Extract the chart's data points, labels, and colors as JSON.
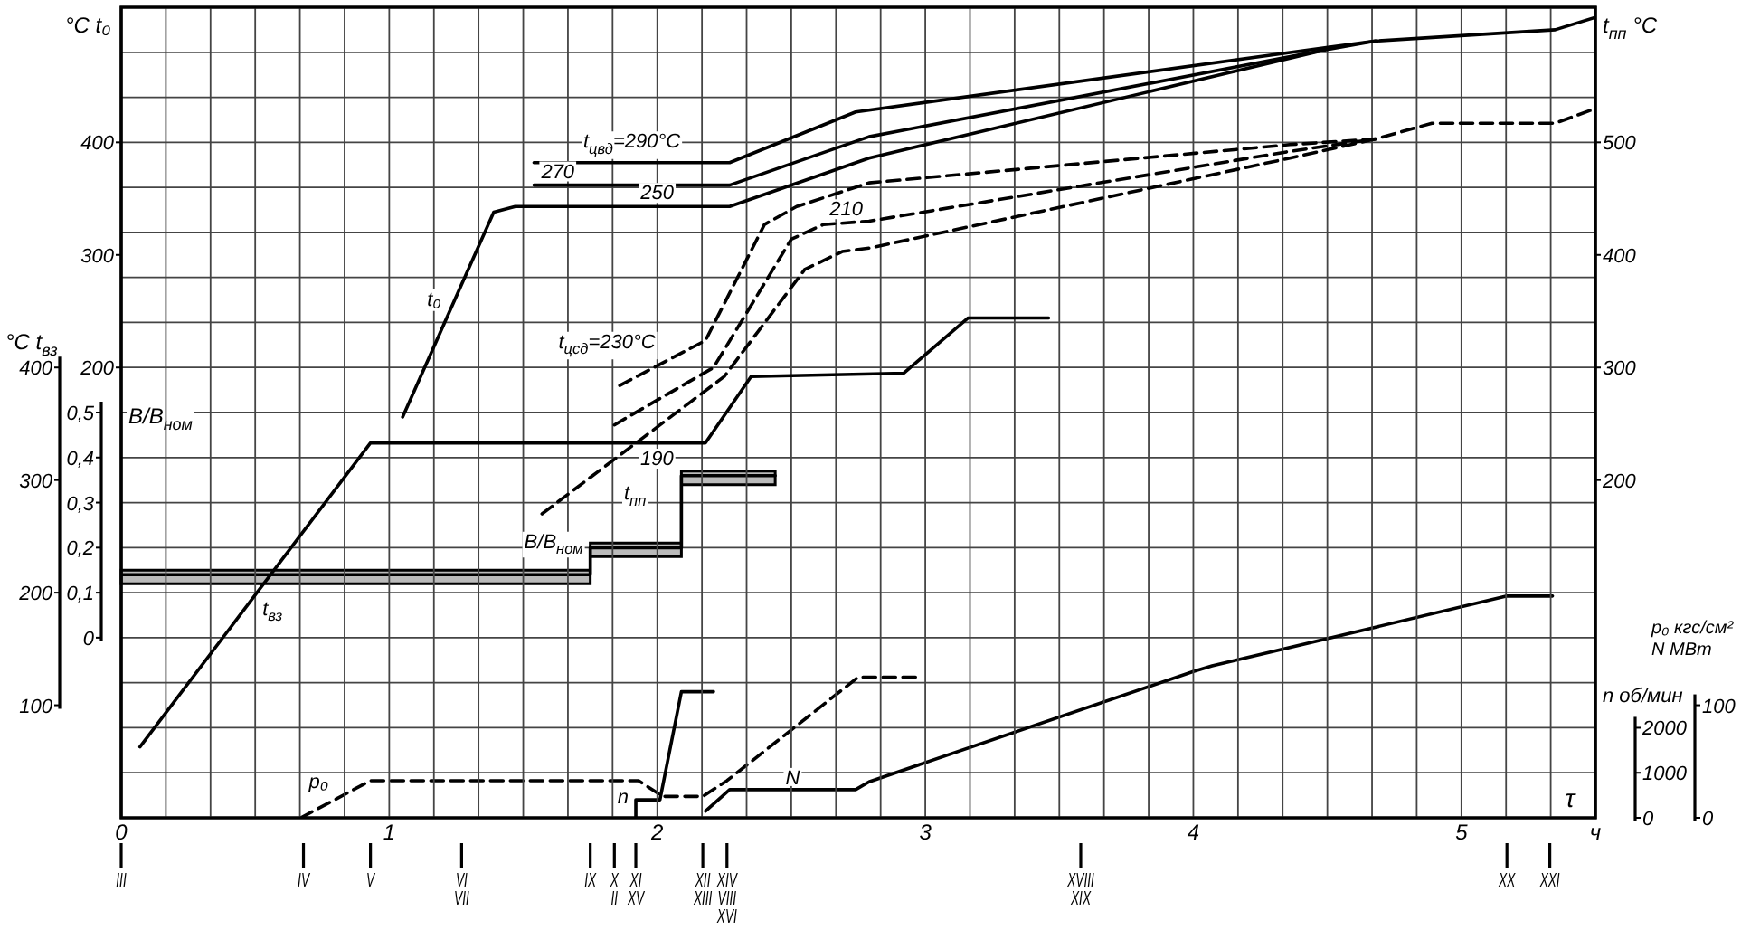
{
  "chart_data": [
    {
      "type": "line",
      "xlabel": "τ",
      "ylabel": "°C t₀",
      "y2label": "t$_{пп}$ °C",
      "y3label": "°C t$_{вз}$",
      "xlim": [
        0,
        5.5
      ],
      "xticks": [
        0,
        {
          "value": 0.1667,
          "label": null
        },
        {
          "value": 0.3333,
          "label": null
        },
        {
          "value": 0.5,
          "label": null
        },
        {
          "value": 0.6667,
          "label": null
        },
        {
          "value": 0.8333,
          "label": null
        },
        1,
        {
          "value": 1.1667,
          "label": null
        },
        {
          "value": 1.3333,
          "label": null
        },
        {
          "value": 1.5,
          "label": null
        },
        {
          "value": 1.6667,
          "label": null
        },
        {
          "value": 1.8333,
          "label": null
        },
        2,
        {
          "value": 2.1667,
          "label": null
        },
        {
          "value": 2.3333,
          "label": null
        },
        {
          "value": 2.5,
          "label": null
        },
        {
          "value": 2.6667,
          "label": null
        },
        {
          "value": 2.8333,
          "label": null
        },
        3,
        {
          "value": 3.1667,
          "label": null
        },
        {
          "value": 3.3333,
          "label": null
        },
        {
          "value": 3.5,
          "label": null
        },
        {
          "value": 3.6667,
          "label": null
        },
        {
          "value": 3.8333,
          "label": null
        },
        4,
        {
          "value": 4.1667,
          "label": null
        },
        {
          "value": 4.3333,
          "label": null
        },
        {
          "value": 4.5,
          "label": null
        },
        {
          "value": 4.6667,
          "label": null
        },
        {
          "value": 4.8333,
          "label": null
        },
        5,
        {
          "value": 5.1667,
          "label": null
        },
        {
          "value": 5.3333,
          "label": null
        },
        {
          "value": 5.5,
          "label": "ч"
        }
      ],
      "ylim": [
        -200,
        520
      ],
      "yticks": [
        200,
        300,
        400
      ],
      "y2lim": [
        -100,
        620
      ],
      "y2ticks": [
        200,
        300,
        400,
        500
      ],
      "y3lim": [
        0,
        720
      ],
      "y3ticks": [
        100,
        200,
        300,
        400
      ],
      "grid": "x",
      "marker": "none",
      "series": [
        {
          "name": "t₀",
          "color": "#000000",
          "x": [
            1.05,
            1.39,
            1.47,
            2.27,
            2.79,
            4.49,
            4.68,
            5.35,
            5.5
          ],
          "values": [
            156,
            338,
            343,
            343,
            386,
            482,
            490,
            500,
            511
          ]
        },
        {
          "name": "t$_{цвд}$=290°C",
          "color": "#000000",
          "x": [
            1.54,
            2.27,
            2.74,
            4.49,
            4.68
          ],
          "values": [
            382,
            382,
            427,
            484,
            490
          ]
        },
        {
          "name": "270",
          "color": "#000000",
          "x": [
            1.54,
            2.27,
            2.79,
            4.49
          ],
          "values": [
            362,
            362,
            405,
            482
          ]
        },
        {
          "name": "t$_{цсд}$=230°C",
          "axis": "y2",
          "color": "#000000",
          "line_style": "dashed",
          "x": [
            1.86,
            2.18,
            2.4,
            2.52,
            2.79,
            4.36,
            4.68,
            4.89,
            5.35,
            5.5
          ],
          "values": [
            284,
            324,
            427,
            443,
            464,
            498,
            503,
            517,
            517,
            530
          ]
        },
        {
          "name": "210",
          "axis": "y2",
          "color": "#000000",
          "line_style": "dashed",
          "x": [
            1.84,
            2.21,
            2.5,
            2.62,
            2.79,
            4.36,
            4.68
          ],
          "values": [
            249,
            300,
            414,
            427,
            430,
            492,
            503
          ]
        },
        {
          "name": "190",
          "axis": "y2",
          "color": "#000000",
          "line_style": "dashed",
          "x": [
            1.57,
            2.25,
            2.55,
            2.69,
            2.79,
            4.36,
            4.68
          ],
          "values": [
            170,
            292,
            387,
            403,
            406,
            486,
            503
          ]
        },
        {
          "name": "t$_{вз}$",
          "axis": "y3",
          "color": "#000000",
          "x": [
            0.07,
            0.93,
            2.18,
            2.35,
            2.92,
            3.16,
            3.46
          ],
          "values": [
            63,
            333,
            333,
            392,
            395,
            444,
            444
          ]
        }
      ],
      "annotations": [
        {
          "text": "250",
          "x": 2.0,
          "y": 343
        },
        "t$_{пп}$"
      ],
      "ref_lines": [
        {
          "axis": "x",
          "value": 0,
          "label": "III"
        },
        {
          "axis": "x",
          "value": 0.68,
          "label": "IV"
        },
        {
          "axis": "x",
          "value": 0.93,
          "label": "V"
        },
        {
          "axis": "x",
          "value": 1.27,
          "label": "VI\nVII"
        },
        {
          "axis": "x",
          "value": 1.75,
          "label": "IX"
        },
        {
          "axis": "x",
          "value": 1.84,
          "label": "X\nII"
        },
        {
          "axis": "x",
          "value": 1.92,
          "label": "XI\nXV"
        },
        {
          "axis": "x",
          "value": 2.17,
          "label": "XII\nXIII"
        },
        {
          "axis": "x",
          "value": 2.26,
          "label": "XIV\nVIII\nXVI"
        },
        {
          "axis": "x",
          "value": 3.58,
          "label": "XVIII\nXIX"
        },
        {
          "axis": "x",
          "value": 5.17,
          "label": "XX"
        },
        {
          "axis": "x",
          "value": 5.33,
          "label": "XXI"
        }
      ]
    },
    {
      "type": "line",
      "ylabel": "B/B$_{ном}$",
      "y2label": "n об/мин",
      "y3label": "p₀ кгс/см²\nN МВт",
      "xlim": [
        0,
        5.5
      ],
      "tick_labels": "y",
      "ylim": [
        -0.4,
        1.4
      ],
      "yticks": [
        0,
        {
          "value": 0.1,
          "label": "0,1"
        },
        {
          "value": 0.2,
          "label": "0,2"
        },
        {
          "value": 0.3,
          "label": "0,3"
        },
        {
          "value": 0.4,
          "label": "0,4"
        },
        {
          "value": 0.5,
          "label": "0,5"
        }
      ],
      "y2lim": [
        0,
        18000
      ],
      "y2ticks": [
        0,
        1000,
        2000,
        {
          "value": 3000,
          "label": null
        },
        {
          "value": 4000,
          "label": null
        },
        {
          "value": 5000,
          "label": null
        },
        {
          "value": 6000,
          "label": null
        },
        {
          "value": 7000,
          "label": null
        },
        {
          "value": 8000,
          "label": null
        },
        {
          "value": 9000,
          "label": null
        },
        {
          "value": 10000,
          "label": null
        },
        {
          "value": 11000,
          "label": null
        },
        {
          "value": 12000,
          "label": null
        },
        {
          "value": 13000,
          "label": null
        },
        {
          "value": 14000,
          "label": null
        },
        {
          "value": 15000,
          "label": null
        },
        {
          "value": 16000,
          "label": null
        },
        {
          "value": 17000,
          "label": null
        }
      ],
      "y3lim": [
        0,
        720
      ],
      "y3ticks": [
        0,
        100
      ],
      "grid": "y",
      "marker": "none",
      "series": [
        {
          "name": "B/B$_{ном}$",
          "color": "#000000",
          "x": [
            0,
            1.75,
            1.75,
            2.09,
            2.09,
            2.44
          ],
          "values": [
            0.14,
            0.14,
            0.2,
            0.2,
            0.36,
            0.36
          ],
          "lower": [
            0.12,
            0.12,
            0.18,
            0.18,
            0.34,
            0.34
          ],
          "upper": [
            0.15,
            0.15,
            0.21,
            0.21,
            0.37,
            0.37
          ]
        },
        {
          "name": "n",
          "axis": "y2",
          "color": "#000000",
          "x": [
            1.92,
            1.92,
            2.01,
            2.09,
            2.21
          ],
          "values": [
            0,
            400,
            400,
            2800,
            2800
          ]
        },
        {
          "name": "p₀",
          "axis": "y3",
          "color": "#000000",
          "line_style": "dashed",
          "x": [
            0.67,
            0.93,
            1.93,
            2.02,
            2.17,
            2.26,
            2.75,
            2.99
          ],
          "values": [
            0,
            33,
            33,
            19,
            19,
            33,
            125,
            125
          ]
        },
        {
          "name": "N",
          "axis": "y3",
          "color": "#000000",
          "x": [
            2.18,
            2.27,
            2.74,
            2.79,
            4.0,
            4.07,
            5.17,
            5.34
          ],
          "values": [
            6,
            25,
            25,
            32,
            130,
            135,
            197,
            197
          ]
        }
      ]
    }
  ]
}
